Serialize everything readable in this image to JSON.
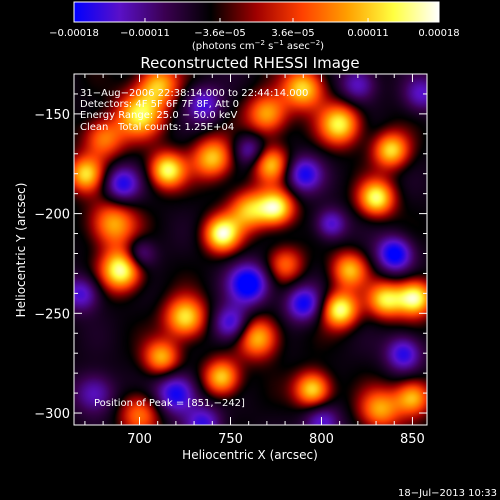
{
  "chart_data": {
    "type": "heatmap",
    "title": "Reconstructed RHESSI Image",
    "xlabel": "Heliocentric X (arcsec)",
    "ylabel": "Heliocentric Y (arcsec)",
    "xlim": [
      664,
      858
    ],
    "ylim": [
      -306,
      -130
    ],
    "x_ticks": [
      700,
      750,
      800,
      850
    ],
    "x_tick_labels": [
      "700",
      "750",
      "800",
      "850"
    ],
    "y_ticks": [
      -150,
      -200,
      -250,
      -300
    ],
    "y_tick_labels": [
      "−150",
      "−200",
      "−250",
      "−300"
    ],
    "colorbar": {
      "min": -0.00018,
      "max": 0.00018,
      "ticks": [
        -0.00018,
        -0.00011,
        -3.6e-05,
        3.6e-05,
        0.00011,
        0.00018
      ],
      "tick_labels": [
        "−0.00018",
        "−0.00011",
        "−3.6e−05",
        "3.6e−05",
        "0.00011",
        "0.00018"
      ],
      "units_prefix": "(photons cm",
      "units_exp1": "−2",
      "units_mid": " s",
      "units_exp2": "−1",
      "units_end": " asec",
      "units_exp3": "−2",
      "units_close": ")",
      "stops": [
        "#0000ff",
        "#5a10c8",
        "#3a0050",
        "#000000",
        "#a00000",
        "#ff4000",
        "#ffa000",
        "#ffff40",
        "#ffffff"
      ]
    },
    "peak": {
      "x": 851,
      "y": -242
    },
    "blobs": [
      {
        "x": 690,
        "y": -228,
        "v": 1.0,
        "s": 8
      },
      {
        "x": 685,
        "y": -205,
        "v": 0.7,
        "s": 9
      },
      {
        "x": 670,
        "y": -180,
        "v": 0.75,
        "s": 7
      },
      {
        "x": 680,
        "y": -162,
        "v": 0.6,
        "s": 8
      },
      {
        "x": 700,
        "y": -150,
        "v": 0.8,
        "s": 9
      },
      {
        "x": 710,
        "y": -135,
        "v": 0.7,
        "s": 8
      },
      {
        "x": 715,
        "y": -178,
        "v": 0.9,
        "s": 7
      },
      {
        "x": 740,
        "y": -172,
        "v": 0.75,
        "s": 8
      },
      {
        "x": 745,
        "y": -210,
        "v": 0.95,
        "s": 7
      },
      {
        "x": 760,
        "y": -198,
        "v": 0.7,
        "s": 8
      },
      {
        "x": 725,
        "y": -252,
        "v": 0.85,
        "s": 8
      },
      {
        "x": 712,
        "y": -272,
        "v": 0.7,
        "s": 7
      },
      {
        "x": 745,
        "y": -282,
        "v": 0.8,
        "s": 7
      },
      {
        "x": 765,
        "y": -262,
        "v": 0.75,
        "s": 8
      },
      {
        "x": 775,
        "y": -197,
        "v": 0.9,
        "s": 7
      },
      {
        "x": 772,
        "y": -175,
        "v": 0.7,
        "s": 7
      },
      {
        "x": 770,
        "y": -150,
        "v": 0.7,
        "s": 8
      },
      {
        "x": 790,
        "y": -137,
        "v": 0.8,
        "s": 8
      },
      {
        "x": 810,
        "y": -155,
        "v": 0.85,
        "s": 8
      },
      {
        "x": 838,
        "y": -168,
        "v": 0.8,
        "s": 7
      },
      {
        "x": 830,
        "y": -192,
        "v": 0.9,
        "s": 7
      },
      {
        "x": 815,
        "y": -228,
        "v": 0.7,
        "s": 7
      },
      {
        "x": 810,
        "y": -248,
        "v": 0.95,
        "s": 7
      },
      {
        "x": 835,
        "y": -243,
        "v": 0.8,
        "s": 7
      },
      {
        "x": 851,
        "y": -242,
        "v": 1.0,
        "s": 7
      },
      {
        "x": 795,
        "y": -288,
        "v": 0.85,
        "s": 7
      },
      {
        "x": 850,
        "y": -292,
        "v": 0.75,
        "s": 7
      },
      {
        "x": 832,
        "y": -298,
        "v": 0.65,
        "s": 8
      },
      {
        "x": 700,
        "y": -300,
        "v": 0.55,
        "s": 8
      },
      {
        "x": 780,
        "y": -225,
        "v": 0.5,
        "s": 7
      },
      {
        "x": 690,
        "y": -185,
        "v": -0.7,
        "s": 7
      },
      {
        "x": 700,
        "y": -220,
        "v": -0.5,
        "s": 6
      },
      {
        "x": 760,
        "y": -235,
        "v": -0.9,
        "s": 8
      },
      {
        "x": 750,
        "y": -255,
        "v": -0.7,
        "s": 7
      },
      {
        "x": 790,
        "y": -245,
        "v": -0.75,
        "s": 7
      },
      {
        "x": 840,
        "y": -220,
        "v": -0.85,
        "s": 7
      },
      {
        "x": 845,
        "y": -270,
        "v": -0.7,
        "s": 7
      },
      {
        "x": 720,
        "y": -290,
        "v": -0.8,
        "s": 8
      },
      {
        "x": 735,
        "y": -305,
        "v": -0.6,
        "s": 7
      },
      {
        "x": 800,
        "y": -305,
        "v": -0.6,
        "s": 7
      },
      {
        "x": 790,
        "y": -180,
        "v": -0.7,
        "s": 7
      },
      {
        "x": 735,
        "y": -145,
        "v": -0.6,
        "s": 7
      },
      {
        "x": 820,
        "y": -135,
        "v": -0.55,
        "s": 7
      },
      {
        "x": 855,
        "y": -140,
        "v": -0.5,
        "s": 7
      },
      {
        "x": 668,
        "y": -240,
        "v": -0.6,
        "s": 7
      },
      {
        "x": 675,
        "y": -290,
        "v": -0.55,
        "s": 8
      },
      {
        "x": 760,
        "y": -168,
        "v": -0.5,
        "s": 6
      },
      {
        "x": 805,
        "y": -205,
        "v": -0.6,
        "s": 6
      }
    ]
  },
  "annotations": {
    "time_range": "31−Aug−2006 22:38:14.000 to 22:44:14.000",
    "detectors": "Detectors: 4F 5F 6F 7F 8F, Att 0",
    "energy": "Energy Range: 25.0 − 50.0 keV",
    "method": "Clean",
    "counts": "Total counts: 1.25E+04",
    "peak_label": "Position of Peak = [851,−242]"
  },
  "footer": {
    "date": "18−Jul−2013 10:33"
  }
}
